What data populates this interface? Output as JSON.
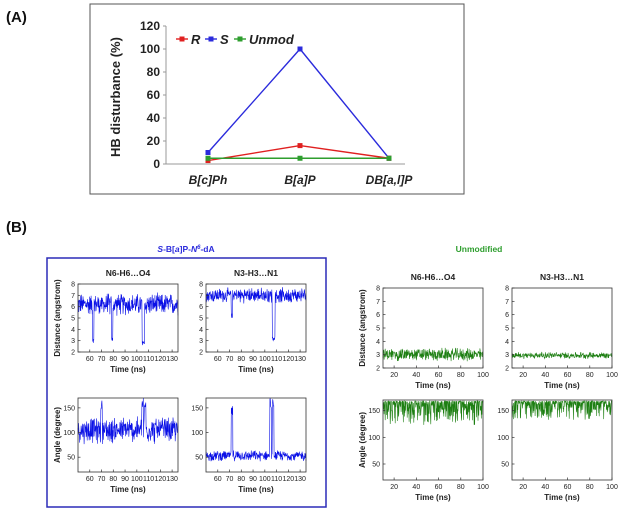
{
  "panel_a_label": "(A)",
  "panel_b_label": "(B)",
  "colors": {
    "R": "#e02020",
    "S": "#2b2bdc",
    "Unmod": "#2e9e2e",
    "trace_s": "#0a10e6",
    "trace_u": "#1d7f12"
  },
  "chart_data": [
    {
      "type": "line",
      "categories": [
        "B[c]Ph",
        "B[a]P",
        "DB[a,l]P"
      ],
      "series": [
        {
          "name": "R",
          "values": [
            3,
            16,
            5
          ]
        },
        {
          "name": "S",
          "values": [
            10,
            100,
            5
          ]
        },
        {
          "name": "Unmod",
          "values": [
            5,
            5,
            5
          ]
        }
      ],
      "xlabel": "",
      "ylabel": "HB disturbance (%)",
      "ylim": [
        0,
        120
      ],
      "yticks": [
        0,
        20,
        40,
        60,
        80,
        100,
        120
      ],
      "legend": "top-left",
      "grid": false
    },
    {
      "type": "line",
      "group": "S-B[a]P-N6-dA",
      "title": "N6-H6…O4",
      "xlabel": "Time (ns)",
      "ylabel": "Distance (angstrom)",
      "xlim": [
        50,
        135
      ],
      "ylim": [
        2,
        8
      ],
      "xticks": [
        60,
        70,
        80,
        90,
        100,
        110,
        120,
        130
      ],
      "yticks": [
        2,
        3,
        4,
        5,
        6,
        7,
        8
      ],
      "series": [
        {
          "baseline": 6.2,
          "noise": 1.1,
          "dips": [
            [
              63,
              2.8
            ],
            [
              79,
              2.9
            ],
            [
              105,
              2.6
            ],
            [
              106,
              2.7
            ]
          ]
        }
      ]
    },
    {
      "type": "line",
      "group": "S-B[a]P-N6-dA",
      "title": "N3-H3…N1",
      "xlabel": "Time (ns)",
      "ylabel": "",
      "xlim": [
        50,
        135
      ],
      "ylim": [
        2,
        8
      ],
      "xticks": [
        60,
        70,
        80,
        90,
        100,
        110,
        120,
        130
      ],
      "yticks": [
        2,
        3,
        4,
        5,
        6,
        7,
        8
      ],
      "series": [
        {
          "baseline": 7.0,
          "noise": 0.75,
          "dips": [
            [
              72,
              5.0
            ],
            [
              107,
              3.0
            ],
            [
              108,
              3.1
            ]
          ]
        }
      ]
    },
    {
      "type": "line",
      "group": "S-B[a]P-N6-dA",
      "title": "",
      "xlabel": "Time (ns)",
      "ylabel": "Angle (degree)",
      "xlim": [
        50,
        135
      ],
      "ylim": [
        20,
        170
      ],
      "xticks": [
        60,
        70,
        80,
        90,
        100,
        110,
        120,
        130
      ],
      "yticks": [
        50,
        100,
        150
      ],
      "series": [
        {
          "baseline": 105,
          "noise": 30,
          "spikes": [
            [
              70,
              165
            ],
            [
              105,
              170
            ],
            [
              107,
              168
            ]
          ]
        }
      ]
    },
    {
      "type": "line",
      "group": "S-B[a]P-N6-dA",
      "title": "",
      "xlabel": "Time (ns)",
      "ylabel": "",
      "xlim": [
        50,
        135
      ],
      "ylim": [
        20,
        170
      ],
      "xticks": [
        60,
        70,
        80,
        90,
        100,
        110,
        120,
        130
      ],
      "yticks": [
        50,
        100,
        150
      ],
      "series": [
        {
          "baseline": 53,
          "noise": 12,
          "spikes": [
            [
              72,
              155
            ],
            [
              105,
              170
            ],
            [
              107,
              168
            ]
          ]
        }
      ]
    },
    {
      "type": "line",
      "group": "Unmodified",
      "title": "N6-H6…O4",
      "xlabel": "Time (ns)",
      "ylabel": "Distance (angstrom)",
      "xlim": [
        10,
        100
      ],
      "ylim": [
        2,
        8
      ],
      "xticks": [
        20,
        40,
        60,
        80,
        100
      ],
      "yticks": [
        2,
        3,
        4,
        5,
        6,
        7,
        8
      ],
      "series": [
        {
          "baseline": 3.0,
          "noise": 0.55
        }
      ]
    },
    {
      "type": "line",
      "group": "Unmodified",
      "title": "N3-H3…N1",
      "xlabel": "Time (ns)",
      "ylabel": "",
      "xlim": [
        10,
        100
      ],
      "ylim": [
        2,
        8
      ],
      "xticks": [
        20,
        40,
        60,
        80,
        100
      ],
      "yticks": [
        2,
        3,
        4,
        5,
        6,
        7,
        8
      ],
      "series": [
        {
          "baseline": 2.95,
          "noise": 0.28
        }
      ]
    },
    {
      "type": "line",
      "group": "Unmodified",
      "title": "",
      "xlabel": "Time (ns)",
      "ylabel": "Angle (degree)",
      "xlim": [
        10,
        100
      ],
      "ylim": [
        20,
        170
      ],
      "xticks": [
        20,
        40,
        60,
        80,
        100
      ],
      "yticks": [
        50,
        100,
        150
      ],
      "series": [
        {
          "baseline": 168,
          "noise": 45,
          "mode": "down"
        }
      ]
    },
    {
      "type": "line",
      "group": "Unmodified",
      "title": "",
      "xlabel": "Time (ns)",
      "ylabel": "",
      "xlim": [
        10,
        100
      ],
      "ylim": [
        20,
        170
      ],
      "xticks": [
        20,
        40,
        60,
        80,
        100
      ],
      "yticks": [
        50,
        100,
        150
      ],
      "series": [
        {
          "baseline": 168,
          "noise": 35,
          "mode": "down"
        }
      ]
    }
  ],
  "group_titles": {
    "s": "S-B[a]P-N6-dA",
    "u": "Unmodified"
  }
}
